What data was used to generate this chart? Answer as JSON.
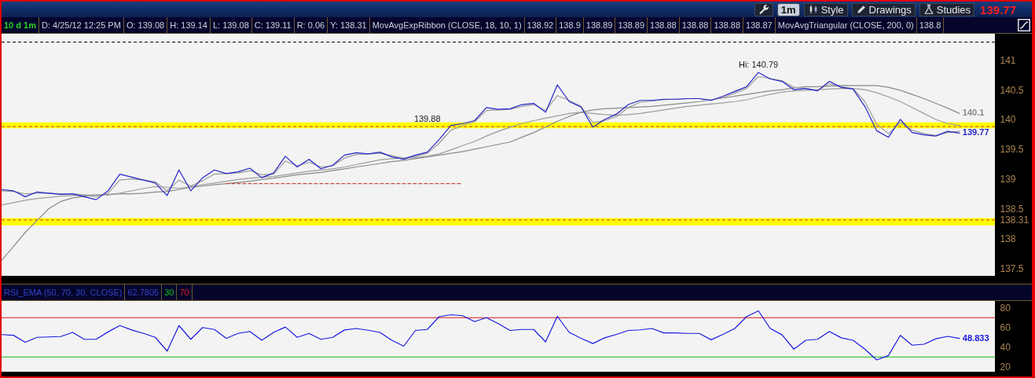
{
  "chart_data": [
    {
      "type": "other",
      "annotations": [
        "1m",
        "Style",
        "Drawings",
        "Studies"
      ],
      "values": [
        139.77
      ],
      "data_labels": true
    },
    {
      "type": "line",
      "title": "10 d 1m",
      "tick_labels": "y",
      "annotations": [
        "D: 4/25/12 12:25 PM",
        "O: 139.08",
        "H: 139.14",
        "L: 139.08",
        "C: 139.11",
        "R: 0.06",
        "Y: 138.31",
        "MovAvgExpRibbon (CLOSE, 18, 10, 1)",
        "138.92",
        "138.9",
        "138.89",
        "138.89",
        "138.88",
        "138.88",
        "138.88",
        "138.87",
        "MovAvgTriangular (CLOSE, 200, 0)",
        "138.8",
        {
          "text": "Hi: 140.79",
          "y": 140.79
        },
        {
          "text": "139.88",
          "y": 139.88
        }
      ],
      "categories": [
        null,
        null,
        null,
        null,
        null,
        null,
        null,
        null,
        null,
        null,
        null,
        null,
        null,
        null,
        null,
        null,
        null,
        null,
        null,
        null,
        null,
        null,
        null,
        null,
        null,
        null,
        null,
        null,
        null,
        null,
        null,
        null,
        null,
        null,
        null,
        null,
        null,
        null,
        null,
        null,
        null,
        null,
        null,
        null,
        null,
        null,
        null,
        null,
        null,
        null,
        null,
        null,
        null,
        null,
        null,
        null,
        null,
        null,
        null,
        null,
        null,
        null,
        null,
        null,
        null,
        null,
        null,
        null,
        null,
        null,
        null,
        null,
        null,
        null,
        null,
        null,
        null,
        null,
        null,
        null,
        null,
        null,
        null,
        null,
        null
      ],
      "ylim": [
        137.37,
        141.44
      ],
      "yticks": [
        137.5,
        138,
        138.31,
        138.5,
        139,
        139.5,
        140,
        140.5,
        141
      ],
      "series": [
        {
          "color": "#8a8a8a",
          "values": [
            137.63,
            137.86,
            138.1,
            138.3,
            138.5,
            138.62,
            138.68,
            138.71,
            138.73,
            138.74,
            138.75,
            138.75,
            138.76,
            138.78,
            138.79,
            138.82,
            138.86,
            138.88,
            138.9,
            138.92,
            138.94,
            138.96,
            138.99,
            139.01,
            139.04,
            139.07,
            139.09,
            139.11,
            139.14,
            139.17,
            139.2,
            139.23,
            139.26,
            139.29,
            139.31,
            139.34,
            139.37,
            139.4,
            139.43,
            139.46,
            139.5,
            139.54,
            139.58,
            139.62,
            139.7,
            139.78,
            139.87,
            139.97,
            140.05,
            140.12,
            140.16,
            140.18,
            140.19,
            140.2,
            140.21,
            140.22,
            140.24,
            140.26,
            140.28,
            140.3,
            140.33,
            140.36,
            140.39,
            140.42,
            140.45,
            140.48,
            140.5,
            140.53,
            140.55,
            140.55,
            140.56,
            140.57,
            140.57,
            140.57,
            140.57,
            140.54,
            140.49,
            140.42,
            140.35,
            140.27,
            140.19,
            140.1,
            null,
            null,
            null
          ],
          "value_labels": [
            null,
            null,
            null,
            null,
            null,
            null,
            null,
            null,
            null,
            null,
            null,
            null,
            null,
            null,
            null,
            null,
            null,
            null,
            null,
            null,
            null,
            null,
            null,
            null,
            null,
            null,
            null,
            null,
            null,
            null,
            null,
            null,
            null,
            null,
            null,
            null,
            null,
            null,
            null,
            null,
            null,
            null,
            null,
            null,
            null,
            null,
            null,
            null,
            null,
            null,
            null,
            null,
            null,
            null,
            null,
            null,
            null,
            null,
            null,
            null,
            null,
            null,
            null,
            null,
            null,
            null,
            null,
            null,
            null,
            null,
            null,
            null,
            null,
            null,
            null,
            null,
            null,
            null,
            null,
            null,
            null,
            "140.1",
            null,
            null,
            null
          ]
        },
        {
          "color": "#9c9c9c",
          "values": [
            138.56,
            138.6,
            138.64,
            138.67,
            138.69,
            138.71,
            138.72,
            138.73,
            138.73,
            138.73,
            138.76,
            138.8,
            138.84,
            138.87,
            138.86,
            138.84,
            138.87,
            138.9,
            138.93,
            138.96,
            138.99,
            139.01,
            139.03,
            139.04,
            139.07,
            139.1,
            139.13,
            139.15,
            139.17,
            139.2,
            139.24,
            139.28,
            139.32,
            139.34,
            139.35,
            139.36,
            139.38,
            139.42,
            139.49,
            139.56,
            139.63,
            139.72,
            139.8,
            139.87,
            139.93,
            139.98,
            140.02,
            140.06,
            140.1,
            140.12,
            140.1,
            140.08,
            140.07,
            140.08,
            140.1,
            140.13,
            140.16,
            140.19,
            140.22,
            140.24,
            140.26,
            140.28,
            140.3,
            140.33,
            140.38,
            140.42,
            140.46,
            140.48,
            140.49,
            140.5,
            140.51,
            140.52,
            140.52,
            140.5,
            140.45,
            140.38,
            140.3,
            140.2,
            140.1,
            140.0,
            139.93,
            139.9,
            null,
            null,
            null
          ]
        },
        {
          "color": "#9c9c9c",
          "values": [
            138.8,
            138.79,
            138.75,
            138.76,
            138.76,
            138.75,
            138.75,
            138.73,
            138.7,
            138.76,
            138.98,
            139.0,
            138.98,
            138.95,
            138.8,
            138.98,
            138.88,
            138.97,
            139.08,
            139.09,
            139.1,
            139.14,
            139.07,
            139.08,
            139.3,
            139.22,
            139.28,
            139.2,
            139.22,
            139.35,
            139.41,
            139.42,
            139.43,
            139.39,
            139.35,
            139.38,
            139.43,
            139.6,
            139.82,
            139.9,
            139.96,
            140.15,
            140.16,
            140.17,
            140.22,
            140.25,
            140.15,
            140.4,
            140.32,
            140.22,
            139.95,
            139.98,
            140.05,
            140.2,
            140.29,
            140.31,
            140.33,
            140.34,
            140.35,
            140.35,
            140.33,
            140.37,
            140.44,
            140.52,
            140.72,
            140.69,
            140.65,
            140.54,
            140.52,
            140.49,
            140.6,
            140.55,
            140.52,
            140.3,
            139.92,
            139.76,
            139.95,
            139.82,
            139.76,
            139.73,
            139.78,
            139.8,
            null,
            null,
            null
          ]
        },
        {
          "color": "#d04848",
          "line_style": "dashed",
          "values": [
            null,
            null,
            null,
            null,
            null,
            null,
            null,
            null,
            null,
            null,
            null,
            null,
            null,
            null,
            null,
            null,
            null,
            null,
            null,
            138.92,
            138.92,
            138.92,
            138.92,
            138.92,
            138.92,
            138.92,
            138.92,
            138.92,
            138.92,
            138.92,
            138.92,
            138.92,
            138.92,
            138.92,
            138.92,
            138.92,
            138.92,
            138.92,
            138.92,
            138.92,
            null,
            null,
            null,
            null,
            null,
            null,
            null,
            null,
            null,
            null,
            null,
            null,
            null,
            null,
            null,
            null,
            null,
            null,
            null,
            null,
            null,
            null,
            null,
            null,
            null,
            null,
            null,
            null,
            null,
            null,
            null,
            null,
            null,
            null,
            null,
            null,
            null,
            null,
            null,
            null,
            null,
            null,
            null,
            null,
            null
          ]
        },
        {
          "color": "#2424c8",
          "values": [
            138.82,
            138.8,
            138.7,
            138.78,
            138.76,
            138.74,
            138.75,
            138.7,
            138.65,
            138.8,
            139.08,
            139.03,
            138.98,
            138.93,
            138.72,
            139.15,
            138.8,
            139.02,
            139.15,
            139.09,
            139.12,
            139.18,
            139.02,
            139.1,
            139.38,
            139.2,
            139.33,
            139.17,
            139.23,
            139.4,
            139.44,
            139.42,
            139.45,
            139.37,
            139.33,
            139.4,
            139.45,
            139.66,
            139.9,
            139.93,
            139.98,
            140.2,
            140.17,
            140.18,
            140.25,
            140.27,
            140.12,
            140.58,
            140.3,
            140.21,
            139.87,
            140.0,
            140.09,
            140.25,
            140.32,
            140.32,
            140.34,
            140.34,
            140.35,
            140.35,
            140.32,
            140.39,
            140.47,
            140.55,
            140.79,
            140.68,
            140.64,
            140.5,
            140.52,
            140.48,
            140.64,
            140.54,
            140.51,
            140.22,
            139.81,
            139.7,
            140.0,
            139.78,
            139.74,
            139.72,
            139.8,
            139.77,
            null,
            null,
            null
          ],
          "value_labels": [
            null,
            null,
            null,
            null,
            null,
            null,
            null,
            null,
            null,
            null,
            null,
            null,
            null,
            null,
            null,
            null,
            null,
            null,
            null,
            null,
            null,
            null,
            null,
            null,
            null,
            null,
            null,
            null,
            null,
            null,
            null,
            null,
            null,
            null,
            null,
            null,
            null,
            null,
            null,
            null,
            null,
            null,
            null,
            null,
            null,
            null,
            null,
            null,
            null,
            null,
            null,
            null,
            null,
            null,
            null,
            null,
            null,
            null,
            null,
            null,
            null,
            null,
            null,
            null,
            null,
            null,
            null,
            null,
            null,
            null,
            null,
            null,
            null,
            null,
            null,
            null,
            null,
            null,
            null,
            null,
            null,
            "139.77",
            null,
            null,
            null
          ]
        }
      ],
      "bands": [
        {
          "axis": "y",
          "from": 139.85,
          "to": 139.95,
          "color": "#ffff00"
        },
        {
          "axis": "y",
          "from": 138.22,
          "to": 138.34,
          "color": "#ffff00"
        }
      ],
      "ref_lines": [
        {
          "axis": "y",
          "value": 139.88,
          "color": "#dd3030",
          "line_style": "dashed"
        },
        {
          "axis": "y",
          "value": 138.31,
          "color": "#dd3030",
          "line_style": "dashed"
        },
        {
          "axis": "y",
          "value": 141.3,
          "color": "#000000",
          "line_style": "dashed"
        }
      ]
    },
    {
      "type": "line",
      "title": "RSI_EMA (50, 70, 30, CLOSE)",
      "tick_labels": "y",
      "annotations": [
        "62.7805"
      ],
      "categories": [
        null,
        null,
        null,
        null,
        null,
        null,
        null,
        null,
        null,
        null,
        null,
        null,
        null,
        null,
        null,
        null,
        null,
        null,
        null,
        null,
        null,
        null,
        null,
        null,
        null,
        null,
        null,
        null,
        null,
        null,
        null,
        null,
        null,
        null,
        null,
        null,
        null,
        null,
        null,
        null,
        null,
        null,
        null,
        null,
        null,
        null,
        null,
        null,
        null,
        null,
        null,
        null,
        null,
        null,
        null,
        null,
        null,
        null,
        null,
        null,
        null,
        null,
        null,
        null,
        null,
        null,
        null,
        null,
        null,
        null,
        null,
        null,
        null,
        null,
        null,
        null,
        null,
        null,
        null,
        null,
        null,
        null,
        null,
        null,
        null
      ],
      "ylim": [
        15,
        87
      ],
      "yticks": [
        20,
        40,
        60,
        80
      ],
      "series": [
        {
          "color": "#1a1ae0",
          "values": [
            52.8,
            52.1,
            45,
            50,
            50.4,
            50.8,
            55,
            48,
            48,
            55.5,
            62,
            57.5,
            54,
            50,
            36,
            62,
            48,
            60,
            58,
            49,
            54,
            56,
            47,
            55,
            60.5,
            50,
            54,
            48,
            50,
            57.5,
            59,
            57.2,
            55,
            47,
            41,
            57,
            58,
            71,
            73,
            72,
            66,
            70,
            64,
            57,
            58,
            58,
            45.4,
            71.4,
            55,
            49,
            43.7,
            49.5,
            53,
            57,
            57.6,
            59,
            54.5,
            54.5,
            54,
            54,
            47.5,
            53,
            59,
            71,
            77,
            59,
            52.5,
            38,
            47,
            48,
            56,
            49.5,
            47,
            38,
            27,
            31.5,
            52,
            42,
            43,
            48.5,
            51,
            48.833,
            null,
            null,
            null
          ],
          "value_labels": [
            null,
            null,
            null,
            null,
            null,
            null,
            null,
            null,
            null,
            null,
            null,
            null,
            null,
            null,
            null,
            null,
            null,
            null,
            null,
            null,
            null,
            null,
            null,
            null,
            null,
            null,
            null,
            null,
            null,
            null,
            null,
            null,
            null,
            null,
            null,
            null,
            null,
            null,
            null,
            null,
            null,
            null,
            null,
            null,
            null,
            null,
            null,
            null,
            null,
            null,
            null,
            null,
            null,
            null,
            null,
            null,
            null,
            null,
            null,
            null,
            null,
            null,
            null,
            null,
            null,
            null,
            null,
            null,
            null,
            null,
            null,
            null,
            null,
            null,
            null,
            null,
            null,
            null,
            null,
            null,
            null,
            "48.833",
            null,
            null,
            null
          ]
        }
      ],
      "ref_lines": [
        {
          "axis": "y",
          "value": 30,
          "label": "30",
          "color": "#10c010"
        },
        {
          "axis": "y",
          "value": 70,
          "label": "70",
          "color": "#dd1a1a"
        }
      ]
    }
  ]
}
